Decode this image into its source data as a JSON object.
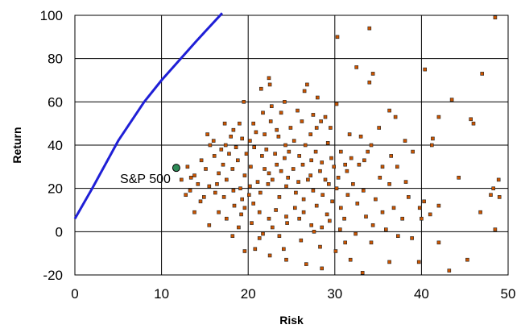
{
  "chart_data": {
    "type": "scatter",
    "xlabel": "Risk",
    "ylabel": "Return",
    "xlim": [
      0,
      50
    ],
    "ylim": [
      -20,
      100
    ],
    "x_ticks": [
      "0",
      "10",
      "20",
      "30",
      "40",
      "50"
    ],
    "y_ticks": [
      "-20",
      "0",
      "20",
      "40",
      "60",
      "80",
      "100"
    ],
    "grid": true,
    "legend": "none",
    "colors": {
      "points": "#cc5500",
      "point_edge": "#222222",
      "frontier": "#1f1fd6",
      "sp500": "#2e8b57"
    },
    "frontier": {
      "x": [
        0,
        2,
        5,
        8,
        10,
        12,
        14,
        17
      ],
      "y": [
        6,
        20,
        42,
        60,
        70,
        79,
        88,
        101
      ]
    },
    "sp500": {
      "label": "S&P 500",
      "x": 11.7,
      "y": 29.5
    },
    "points": [
      [
        30.3,
        90
      ],
      [
        34,
        94
      ],
      [
        32.5,
        76
      ],
      [
        34.4,
        73
      ],
      [
        34,
        69
      ],
      [
        40.4,
        75
      ],
      [
        47,
        73
      ],
      [
        48.5,
        99
      ],
      [
        43.5,
        61
      ],
      [
        45.7,
        52
      ],
      [
        46,
        50
      ],
      [
        42,
        53
      ],
      [
        41.3,
        43
      ],
      [
        41.2,
        40
      ],
      [
        39,
        37
      ],
      [
        36.3,
        56
      ],
      [
        37,
        53
      ],
      [
        22.4,
        71
      ],
      [
        22.5,
        68
      ],
      [
        21.5,
        66
      ],
      [
        26.8,
        68
      ],
      [
        26.5,
        65
      ],
      [
        24.2,
        60
      ],
      [
        28,
        62
      ],
      [
        30.2,
        59
      ],
      [
        31.7,
        45
      ],
      [
        33,
        44
      ],
      [
        34.2,
        40
      ],
      [
        33.4,
        33
      ],
      [
        36.5,
        35
      ],
      [
        35.5,
        30
      ],
      [
        37.2,
        30
      ],
      [
        35.2,
        25
      ],
      [
        36.3,
        22
      ],
      [
        38.2,
        23
      ],
      [
        44.3,
        25
      ],
      [
        40.3,
        14
      ],
      [
        39.8,
        11
      ],
      [
        41,
        8
      ],
      [
        40,
        6
      ],
      [
        42,
        12
      ],
      [
        46.8,
        9
      ],
      [
        48,
        17
      ],
      [
        48.3,
        20
      ],
      [
        48.9,
        24
      ],
      [
        49,
        16
      ],
      [
        48.5,
        1
      ],
      [
        45.3,
        -13
      ],
      [
        39.7,
        -14
      ],
      [
        43.2,
        -18
      ],
      [
        42,
        -5
      ],
      [
        37.3,
        -2
      ],
      [
        36.3,
        -14
      ],
      [
        33.2,
        -19
      ],
      [
        30.6,
        1
      ],
      [
        28.5,
        2
      ],
      [
        27.3,
        3
      ],
      [
        24.5,
        4
      ],
      [
        21.3,
        -3
      ],
      [
        20.8,
        -8
      ],
      [
        22.5,
        -11
      ],
      [
        19.6,
        -9
      ],
      [
        24.4,
        -13
      ],
      [
        26.7,
        -15
      ],
      [
        28.5,
        -17
      ],
      [
        31.2,
        -5
      ],
      [
        31.8,
        -13
      ],
      [
        18.2,
        -2
      ],
      [
        13,
        30
      ],
      [
        13.4,
        25
      ],
      [
        14.2,
        22
      ],
      [
        12.3,
        24
      ],
      [
        13.3,
        19
      ],
      [
        14.5,
        14
      ],
      [
        13.8,
        9
      ],
      [
        15.6,
        40
      ],
      [
        15.3,
        45
      ],
      [
        16,
        42
      ],
      [
        17.3,
        50
      ],
      [
        18.3,
        47
      ],
      [
        19,
        50
      ],
      [
        19.5,
        60
      ],
      [
        20.2,
        42
      ],
      [
        20.6,
        50
      ],
      [
        21.7,
        55
      ],
      [
        22.6,
        51
      ],
      [
        23.3,
        47
      ],
      [
        23.5,
        44
      ],
      [
        24.3,
        40
      ],
      [
        25.3,
        42
      ],
      [
        26.6,
        40
      ],
      [
        27.2,
        45
      ],
      [
        28.4,
        51
      ],
      [
        28.9,
        53
      ],
      [
        29.5,
        48
      ],
      [
        29.2,
        41
      ],
      [
        30.7,
        37
      ],
      [
        32.8,
        31
      ],
      [
        31.4,
        28
      ],
      [
        30.4,
        25
      ],
      [
        29.3,
        22
      ],
      [
        28.5,
        32
      ],
      [
        27.2,
        26
      ],
      [
        26.3,
        31
      ],
      [
        25.2,
        29
      ],
      [
        24.2,
        34
      ],
      [
        23.3,
        31
      ],
      [
        22.4,
        27
      ],
      [
        21.6,
        35
      ],
      [
        20.3,
        30
      ],
      [
        19.6,
        26
      ],
      [
        18.8,
        33
      ],
      [
        18.2,
        29
      ],
      [
        17.5,
        24
      ],
      [
        17.1,
        31
      ],
      [
        16.6,
        27
      ],
      [
        16.1,
        35
      ],
      [
        15.5,
        21
      ],
      [
        16.2,
        18
      ],
      [
        17.2,
        16
      ],
      [
        18.3,
        19
      ],
      [
        19.3,
        15
      ],
      [
        20.2,
        21
      ],
      [
        21.4,
        18
      ],
      [
        22.3,
        22
      ],
      [
        23.6,
        16
      ],
      [
        24.4,
        21
      ],
      [
        25.5,
        18
      ],
      [
        26.4,
        15
      ],
      [
        27.5,
        19
      ],
      [
        28.6,
        17
      ],
      [
        29.7,
        14
      ],
      [
        30.7,
        11
      ],
      [
        31.5,
        17
      ],
      [
        32.6,
        13
      ],
      [
        33.6,
        7
      ],
      [
        35.5,
        9
      ],
      [
        34.4,
        3
      ],
      [
        26.4,
        9
      ],
      [
        25.4,
        11
      ],
      [
        24.4,
        7
      ],
      [
        23.2,
        10
      ],
      [
        22.4,
        6
      ],
      [
        21.3,
        9
      ],
      [
        20.4,
        4
      ],
      [
        19.2,
        8
      ],
      [
        18.4,
        12
      ],
      [
        17.5,
        6
      ],
      [
        16.6,
        9
      ],
      [
        15.5,
        3
      ],
      [
        19.8,
        36
      ],
      [
        20.7,
        39
      ],
      [
        22.1,
        38
      ],
      [
        23.1,
        36
      ],
      [
        24.7,
        37
      ],
      [
        25.9,
        35
      ],
      [
        27.8,
        37
      ],
      [
        28.3,
        28
      ],
      [
        26.9,
        24
      ],
      [
        25.8,
        23
      ],
      [
        24.6,
        25
      ],
      [
        23.8,
        28
      ],
      [
        22.8,
        24
      ],
      [
        21.9,
        29
      ],
      [
        21.1,
        23
      ],
      [
        20.1,
        17
      ],
      [
        19.1,
        20
      ],
      [
        18.6,
        39
      ],
      [
        17.8,
        36
      ],
      [
        16.9,
        38
      ],
      [
        16.4,
        22
      ],
      [
        15.1,
        29
      ],
      [
        14.6,
        33
      ],
      [
        14.9,
        16
      ],
      [
        13.8,
        26
      ],
      [
        12.8,
        17
      ],
      [
        22.7,
        58
      ],
      [
        23.8,
        55
      ],
      [
        25.7,
        56
      ],
      [
        27.5,
        54
      ],
      [
        29.6,
        34
      ],
      [
        31.2,
        31
      ],
      [
        32.1,
        22
      ],
      [
        33.3,
        19
      ],
      [
        34.7,
        15
      ],
      [
        36.8,
        11
      ],
      [
        38.5,
        16
      ],
      [
        37.8,
        6
      ],
      [
        35.9,
        1
      ],
      [
        32.4,
        -1
      ],
      [
        29.4,
        5
      ],
      [
        27.6,
        0
      ],
      [
        26.1,
        -4
      ],
      [
        23.6,
        -2
      ],
      [
        22.8,
        2
      ],
      [
        21.7,
        -1
      ],
      [
        20.6,
        13
      ],
      [
        19.6,
        11
      ],
      [
        18.9,
        2
      ],
      [
        21.9,
        45
      ],
      [
        24.9,
        48
      ],
      [
        27.9,
        48
      ],
      [
        26.2,
        51
      ],
      [
        20.9,
        46
      ],
      [
        19.3,
        43
      ],
      [
        18,
        44
      ],
      [
        17.4,
        40
      ],
      [
        27.3,
        33
      ],
      [
        29.9,
        30
      ],
      [
        31.9,
        34
      ],
      [
        30.2,
        20
      ],
      [
        28.9,
        24
      ],
      [
        27.9,
        12
      ],
      [
        25.9,
        6
      ],
      [
        24.1,
        -8
      ],
      [
        28.3,
        -7
      ],
      [
        30.1,
        -9
      ],
      [
        34.2,
        -5
      ],
      [
        38.9,
        -3
      ],
      [
        35.1,
        48
      ],
      [
        33.8,
        37
      ],
      [
        38.1,
        42
      ],
      [
        29.1,
        8
      ],
      [
        31.1,
        6
      ]
    ]
  }
}
